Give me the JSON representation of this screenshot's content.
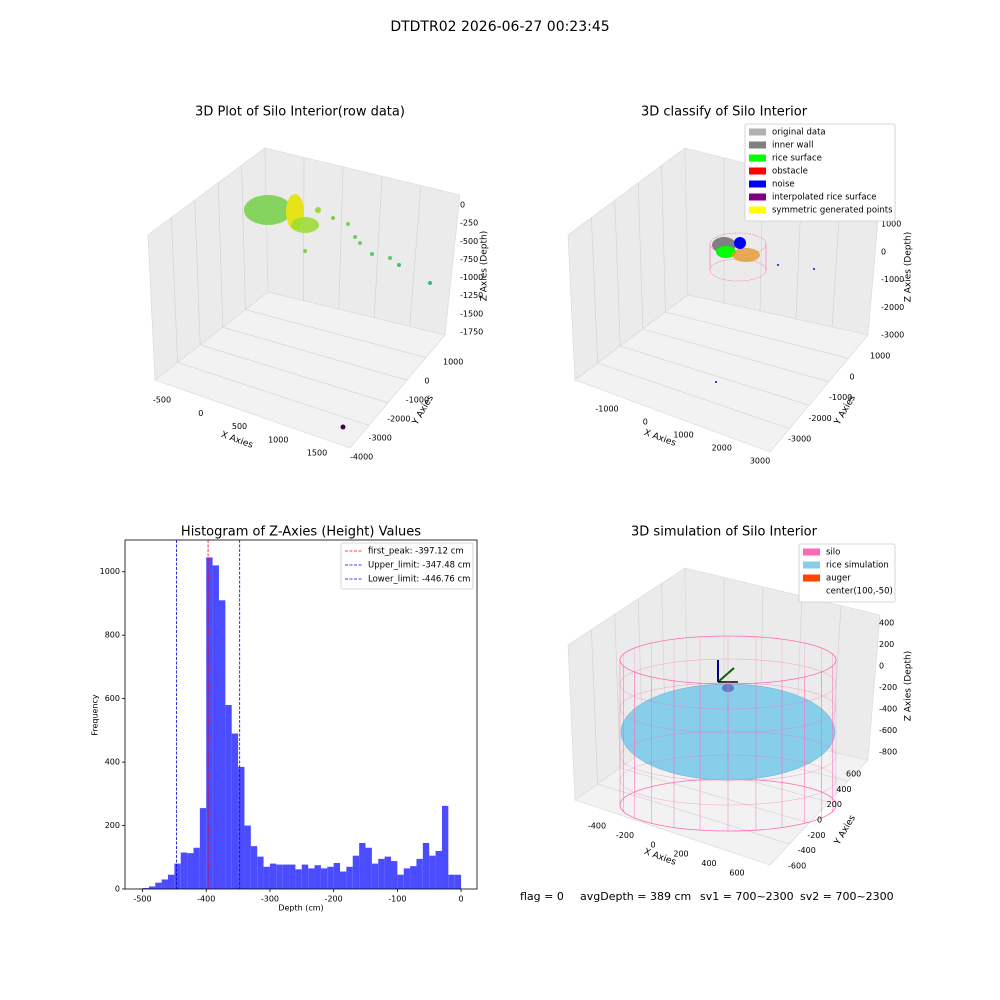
{
  "title": "DTDTR02 2026-06-27 00:23:45",
  "chart_data": [
    {
      "type": "scatter3d",
      "title": "3D Plot of Silo Interior(row data)",
      "xlabel": "X Axies",
      "ylabel": "Y Axies",
      "zlabel": "Z Axies (Depth)",
      "xticks": [
        -500,
        0,
        500,
        1000,
        1500
      ],
      "yticks": [
        1000,
        0,
        -1000,
        -2000,
        -3000,
        -4000
      ],
      "zticks": [
        0,
        -250,
        -500,
        -750,
        -1000,
        -1250,
        -1500,
        -1750
      ]
    },
    {
      "type": "scatter3d",
      "title": "3D classify of Silo Interior",
      "xlabel": "X Axies",
      "ylabel": "Y Axies",
      "zlabel": "Z Axies (Depth)",
      "xticks": [
        -1000,
        0,
        1000,
        2000,
        3000
      ],
      "yticks": [
        1000,
        0,
        -1000,
        -2000,
        -3000
      ],
      "zticks": [
        1000,
        0,
        -1000,
        -2000,
        -3000
      ],
      "legend_loc": "upper right",
      "legend": [
        {
          "name": "original data",
          "color": "#b0b0b0"
        },
        {
          "name": "inner wall",
          "color": "#808080"
        },
        {
          "name": "rice surface",
          "color": "#00ff00"
        },
        {
          "name": "obstacle",
          "color": "#ff0000"
        },
        {
          "name": "noise",
          "color": "#0000ff"
        },
        {
          "name": "interpolated rice surface",
          "color": "#800080"
        },
        {
          "name": "symmetric generated points",
          "color": "#ffff00"
        }
      ]
    },
    {
      "type": "histogram",
      "title": "Histogram of Z-Axies (Height) Values",
      "xlabel": "Depth (cm)",
      "ylabel": "Frequency",
      "color": "#4b4bff",
      "bins": [
        -510,
        -500,
        -490,
        -480,
        -470,
        -460,
        -450,
        -440,
        -430,
        -420,
        -410,
        -400,
        -390,
        -380,
        -370,
        -360,
        -350,
        -340,
        -330,
        -320,
        -310,
        -300,
        -290,
        -280,
        -270,
        -260,
        -250,
        -240,
        -230,
        -220,
        -210,
        -200,
        -190,
        -180,
        -170,
        -160,
        -150,
        -140,
        -130,
        -120,
        -110,
        -100,
        -90,
        -80,
        -70,
        -60,
        -50,
        -40,
        -30,
        -20,
        -10,
        0
      ],
      "values": [
        1,
        3,
        8,
        20,
        30,
        45,
        80,
        115,
        113,
        130,
        255,
        1045,
        1020,
        910,
        580,
        490,
        385,
        200,
        135,
        102,
        70,
        80,
        77,
        77,
        77,
        62,
        77,
        65,
        75,
        65,
        70,
        82,
        55,
        70,
        105,
        145,
        130,
        80,
        95,
        102,
        88,
        45,
        65,
        72,
        95,
        145,
        105,
        120,
        262,
        45,
        45
      ],
      "xlim": [
        -527.5,
        25
      ],
      "ylim": [
        0,
        1100
      ],
      "xticks": [
        -500,
        -400,
        -300,
        -200,
        -100,
        0
      ],
      "yticks": [
        0,
        200,
        400,
        600,
        800,
        1000
      ],
      "legend_loc": "upper right",
      "vlines": [
        {
          "name": "first_peak: -397.12 cm",
          "value": -397.12,
          "color": "#ff0000"
        },
        {
          "name": "Upper_limit: -347.48 cm",
          "value": -347.48,
          "color": "#0000cc"
        },
        {
          "name": "Lower_limit: -446.76 cm",
          "value": -446.76,
          "color": "#0000cc"
        }
      ]
    },
    {
      "type": "surface3d",
      "title": "3D simulation of Silo Interior",
      "xlabel": "X Axies",
      "ylabel": "Y Axies",
      "zlabel": "Z Axies (Depth)",
      "xticks": [
        -400,
        -200,
        0,
        200,
        400,
        600
      ],
      "yticks": [
        600,
        400,
        200,
        0,
        -200,
        -400,
        -600
      ],
      "zticks": [
        400,
        200,
        0,
        -200,
        -400,
        -600,
        -800
      ],
      "legend_loc": "upper right",
      "legend": [
        {
          "name": "silo",
          "color": "#ff69b4"
        },
        {
          "name": "rice simulation",
          "color": "#87ceeb"
        },
        {
          "name": "auger",
          "color": "#ff4500"
        },
        {
          "name": "center(100,-50)",
          "color": "#ffffff"
        }
      ]
    }
  ],
  "footer": [
    "flag = 0",
    "avgDepth = 389 cm",
    "sv1 = 700~2300",
    "sv2 = 700~2300"
  ]
}
